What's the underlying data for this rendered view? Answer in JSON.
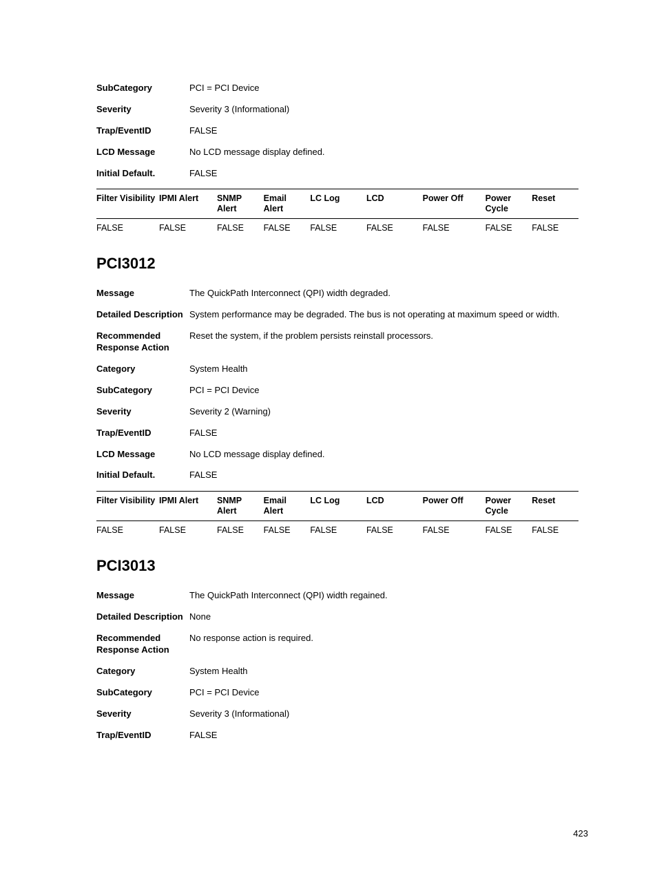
{
  "top_block": {
    "rows": [
      {
        "label": "SubCategory",
        "value": "PCI = PCI Device"
      },
      {
        "label": "Severity",
        "value": "Severity 3 (Informational)"
      },
      {
        "label": "Trap/EventID",
        "value": "FALSE"
      },
      {
        "label": "LCD Message",
        "value": "No LCD message display defined."
      },
      {
        "label": "Initial Default.",
        "value": "FALSE"
      }
    ]
  },
  "alert_table": {
    "columns": [
      "Filter Visibility",
      "IPMI Alert",
      "SNMP Alert",
      "Email Alert",
      "LC Log",
      "LCD",
      "Power Off",
      "Power Cycle",
      "Reset"
    ],
    "col_widths": [
      "78px",
      "72px",
      "58px",
      "58px",
      "70px",
      "70px",
      "78px",
      "58px",
      "58px"
    ]
  },
  "top_table_row": [
    "FALSE",
    "FALSE",
    "FALSE",
    "FALSE",
    "FALSE",
    "FALSE",
    "FALSE",
    "FALSE",
    "FALSE"
  ],
  "sections": [
    {
      "title": "PCI3012",
      "rows": [
        {
          "label": "Message",
          "value": "The QuickPath Interconnect (QPI) width degraded."
        },
        {
          "label": "Detailed Description",
          "value": "System performance may be degraded. The bus is not operating at maximum speed or width."
        },
        {
          "label": "Recommended Response Action",
          "value": "Reset the system, if the problem persists reinstall processors."
        },
        {
          "label": "Category",
          "value": "System Health"
        },
        {
          "label": "SubCategory",
          "value": "PCI = PCI Device"
        },
        {
          "label": "Severity",
          "value": "Severity 2 (Warning)"
        },
        {
          "label": "Trap/EventID",
          "value": "FALSE"
        },
        {
          "label": "LCD Message",
          "value": "No LCD message display defined."
        },
        {
          "label": "Initial Default.",
          "value": "FALSE"
        }
      ],
      "table_row": [
        "FALSE",
        "FALSE",
        "FALSE",
        "FALSE",
        "FALSE",
        "FALSE",
        "FALSE",
        "FALSE",
        "FALSE"
      ]
    },
    {
      "title": "PCI3013",
      "rows": [
        {
          "label": "Message",
          "value": "The QuickPath Interconnect (QPI) width regained."
        },
        {
          "label": "Detailed Description",
          "value": "None"
        },
        {
          "label": "Recommended Response Action",
          "value": "No response action is required."
        },
        {
          "label": "Category",
          "value": "System Health"
        },
        {
          "label": "SubCategory",
          "value": "PCI = PCI Device"
        },
        {
          "label": "Severity",
          "value": "Severity 3 (Informational)"
        },
        {
          "label": "Trap/EventID",
          "value": "FALSE"
        }
      ],
      "table_row": null
    }
  ],
  "page_number": "423"
}
